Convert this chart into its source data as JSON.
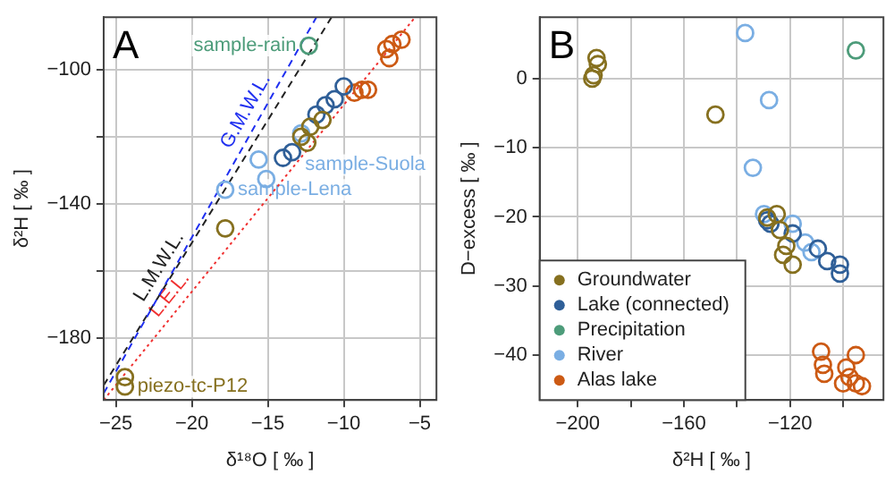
{
  "chart_data": [
    {
      "type": "scatter",
      "title": "A",
      "xlabel": "δ¹⁸O [ ‰ ]",
      "ylabel": "δ²H [ ‰ ]",
      "xlim": [
        -25.8,
        -3.9
      ],
      "ylim": [
        -198.4,
        -84.4
      ],
      "xticks": [
        -25,
        -20,
        -15,
        -10,
        -5
      ],
      "yticks": [
        {
          "value": -180,
          "label": "−180"
        },
        {
          "value": -160,
          "label": null
        },
        {
          "value": -140,
          "label": "−140"
        },
        {
          "value": -120,
          "label": null
        },
        {
          "value": -100,
          "label": "−100"
        }
      ],
      "grid": true,
      "marker": "circle",
      "series": [
        {
          "name": "G.M.W.L.",
          "type": "line",
          "line_style": "dashed",
          "marker": "none",
          "color": "#1f2ff0",
          "x": [
            -25.8,
            -11.8
          ],
          "values": [
            -196.4,
            -84.4
          ]
        },
        {
          "name": "L.M.W.L.",
          "type": "line",
          "line_style": "dashed",
          "marker": "none",
          "color": "#222222",
          "x": [
            -25.8,
            -10.8
          ],
          "values": [
            -194,
            -84.4
          ]
        },
        {
          "name": "L.E.L.",
          "type": "line",
          "line_style": "dotted",
          "marker": "none",
          "color": "#f03030",
          "x": [
            -25.8,
            -5.3
          ],
          "values": [
            -198.4,
            -84.4
          ]
        },
        {
          "color": "#86701f",
          "x": [
            -24.4,
            -24.4,
            -17.8,
            -12.8,
            -12.2,
            -11.4,
            -12.4
          ],
          "values": [
            -191.6,
            -194.4,
            -147.3,
            -120,
            -117,
            -115,
            -121.8
          ]
        },
        {
          "color": "#2f5f98",
          "x": [
            -10,
            -10.6,
            -11.2,
            -11.8,
            -13.4,
            -14
          ],
          "values": [
            -105,
            -108.8,
            -110.6,
            -113.4,
            -124.6,
            -126.3
          ]
        },
        {
          "color": "#4d9c7a",
          "x": [
            -12.3
          ],
          "values": [
            -92.9
          ]
        },
        {
          "color": "#7aaee3",
          "x": [
            -15.6,
            -15.1,
            -17.8,
            -12.8
          ],
          "values": [
            -126.8,
            -132.6,
            -135.8,
            -119
          ]
        },
        {
          "color": "#cc5a14",
          "x": [
            -6.2,
            -6.8,
            -7.2,
            -7,
            -8.8,
            -8.4,
            -9.3
          ],
          "values": [
            -91.1,
            -92.4,
            -93.9,
            -96.6,
            -106,
            -106,
            -106.9
          ]
        }
      ],
      "annotations": [
        {
          "text": "sample-rain",
          "x": -12.3,
          "y": -92.9
        },
        {
          "text": "sample-Suola",
          "x": -15.6,
          "y": -126.8
        },
        {
          "text": "sample-Lena",
          "x": -17.8,
          "y": -135.8
        },
        {
          "text": "piezo-tc-P12",
          "x": -24.4,
          "y": -194.4
        }
      ]
    },
    {
      "type": "scatter",
      "title": "B",
      "xlabel": "δ²H [ ‰ ]",
      "ylabel": "D−excess [ ‰ ]",
      "xlim": [
        -214.3,
        -84.8
      ],
      "ylim": [
        -46.5,
        8.9
      ],
      "xticks": [
        {
          "value": -200,
          "label": "−200"
        },
        {
          "value": -180,
          "label": null
        },
        {
          "value": -160,
          "label": "−160"
        },
        {
          "value": -140,
          "label": null
        },
        {
          "value": -120,
          "label": "−120"
        },
        {
          "value": -100,
          "label": null
        }
      ],
      "yticks": [
        {
          "value": -40,
          "label": "−40"
        },
        {
          "value": -30,
          "label": "−30"
        },
        {
          "value": -20,
          "label": "−20"
        },
        {
          "value": -10,
          "label": "−10"
        },
        0
      ],
      "grid": true,
      "marker": "circle",
      "legend": "bottom left",
      "series": [
        {
          "name": "Groundwater",
          "color": "#86701f",
          "x": [
            -192.9,
            -192.4,
            -194,
            -194.5,
            -148.1,
            -128.6,
            -125,
            -123.8,
            -121.4,
            -119,
            -122.6
          ],
          "values": [
            3,
            2.1,
            0.5,
            0,
            -5.2,
            -20.1,
            -19.6,
            -21.9,
            -24.2,
            -26.9,
            -25.5
          ]
        },
        {
          "name": "Lake (connected)",
          "color": "#2f5f98",
          "x": [
            -128.6,
            -127.4,
            -109.5,
            -106,
            -101.2,
            -101.2,
            -119
          ],
          "values": [
            -20.5,
            -21,
            -24.6,
            -26.4,
            -26.9,
            -28.2,
            -22.4
          ]
        },
        {
          "name": "Precipitation",
          "color": "#4d9c7a",
          "x": [
            -95.2
          ],
          "values": [
            4.1
          ]
        },
        {
          "name": "River",
          "color": "#7aaee3",
          "x": [
            -136.9,
            -127.9,
            -134,
            -129.8,
            -119,
            -114.3,
            -111.9
          ],
          "values": [
            6.6,
            -3.1,
            -12.9,
            -19.6,
            -21,
            -23.7,
            -25.1
          ]
        },
        {
          "name": "Alas lake",
          "color": "#cc5a14",
          "x": [
            -108.3,
            -107.6,
            -107.1,
            -98.8,
            -97.6,
            -95.2,
            -95.2,
            -92.9,
            -100
          ],
          "values": [
            -39.5,
            -41.4,
            -42.7,
            -41.8,
            -43.2,
            -40,
            -44.1,
            -44.5,
            -44.1
          ]
        }
      ]
    }
  ]
}
